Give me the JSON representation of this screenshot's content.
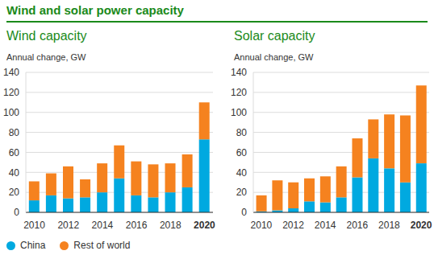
{
  "title": "Wind and solar power capacity",
  "chart_data": [
    {
      "type": "bar",
      "title": "Wind capacity",
      "subtitle": "Annual change, GW",
      "stacked": true,
      "grid": true,
      "legend": "bottom left",
      "categories": [
        "2010",
        null,
        "2012",
        null,
        "2014",
        null,
        "2016",
        null,
        "2018",
        null,
        "2020"
      ],
      "series": [
        {
          "name": "China",
          "color": "#00a9e0",
          "values": [
            12,
            17,
            14,
            15,
            20,
            34,
            17,
            15,
            20,
            25,
            73
          ]
        },
        {
          "name": "Rest of world",
          "color": "#f5821f",
          "values": [
            19,
            22,
            32,
            18,
            29,
            33,
            34,
            33,
            29,
            33,
            37
          ]
        }
      ],
      "ylim": [
        0,
        140
      ],
      "yticks": [
        0,
        20,
        40,
        60,
        80,
        100,
        120,
        140
      ]
    },
    {
      "type": "bar",
      "title": "Solar capacity",
      "subtitle": "Annual change, GW",
      "stacked": true,
      "grid": true,
      "categories": [
        "2010",
        null,
        "2012",
        null,
        "2014",
        null,
        "2016",
        null,
        "2018",
        null,
        "2020"
      ],
      "series": [
        {
          "name": "China",
          "color": "#00a9e0",
          "values": [
            1,
            2,
            4,
            11,
            10,
            15,
            35,
            54,
            44,
            30,
            49
          ]
        },
        {
          "name": "Rest of world",
          "color": "#f5821f",
          "values": [
            16,
            30,
            26,
            23,
            26,
            31,
            39,
            39,
            54,
            67,
            78
          ]
        }
      ],
      "ylim": [
        0,
        140
      ],
      "yticks": [
        0,
        20,
        40,
        60,
        80,
        100,
        120,
        140
      ]
    }
  ]
}
